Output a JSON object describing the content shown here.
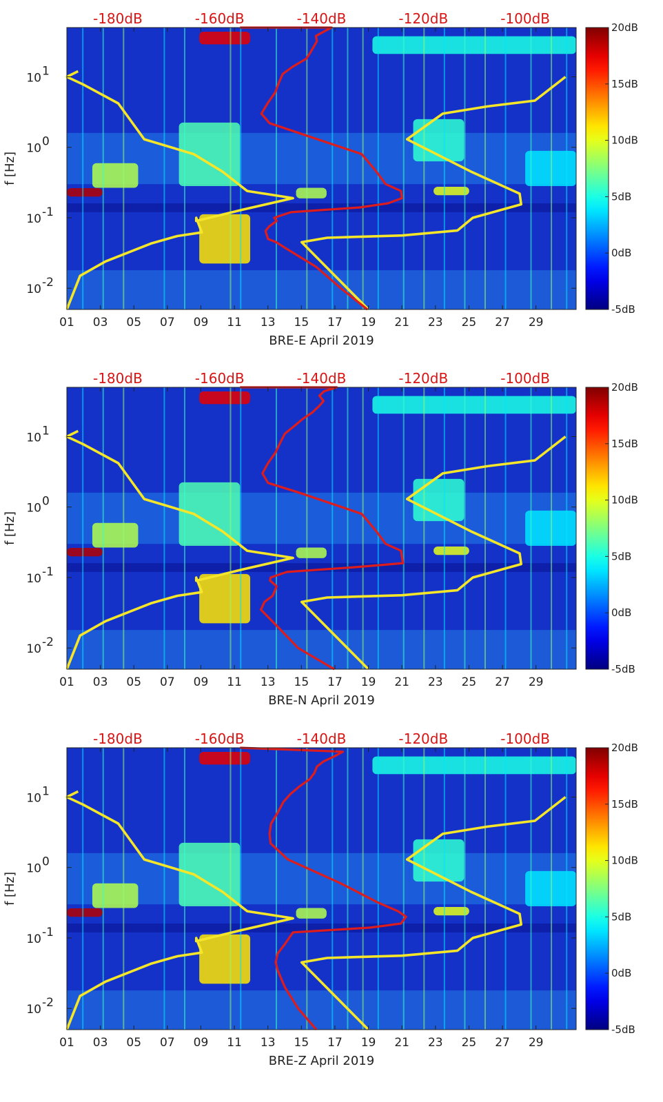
{
  "chart_data": [
    {
      "type": "heatmap",
      "xlabel": "BRE-E April 2019",
      "ylabel": "f [Hz]",
      "x_ticks": [
        "01",
        "03",
        "05",
        "07",
        "09",
        "11",
        "13",
        "15",
        "17",
        "19",
        "21",
        "23",
        "25",
        "27",
        "29"
      ],
      "y_ticks": [
        {
          "value": 0.01,
          "base": "10",
          "exp": "-2"
        },
        {
          "value": 0.1,
          "base": "10",
          "exp": "-1"
        },
        {
          "value": 1,
          "base": "10",
          "exp": "0"
        },
        {
          "value": 10,
          "base": "10",
          "exp": "1"
        }
      ],
      "y_scale": "log",
      "xlim": [
        1,
        31.4
      ],
      "ylim": [
        0.005,
        50
      ],
      "top_axis_labels": [
        "-180dB",
        "-160dB",
        "-140dB",
        "-120dB",
        "-100dB"
      ],
      "top_axis_range_db": [
        -190,
        -90
      ],
      "colorbar": {
        "ticks": [
          "20dB",
          "15dB",
          "10dB",
          "5dB",
          "0dB",
          "-5dB"
        ],
        "range_db": [
          -5,
          20
        ],
        "colormap": "jet"
      },
      "series": [
        {
          "kind": "noise-model-low",
          "color": "#f5e62a",
          "x": [
            -190.0,
            -187.4,
            -182.4,
            -173.5,
            -168.3,
            -163.5,
            -164.6,
            -164.6,
            -155.5,
            -145.6,
            -154.6,
            -159.4,
            -165.1,
            -174.8,
            -179.9,
            -186.8,
            -190.0,
            -187.8
          ],
          "y": [
            0.005,
            0.015,
            0.024,
            0.043,
            0.055,
            0.062,
            0.1,
            0.09,
            0.13,
            0.19,
            0.24,
            0.45,
            0.8,
            1.3,
            4.2,
            7.8,
            10.0,
            12.0
          ]
        },
        {
          "kind": "noise-model-high",
          "color": "#f5e62a",
          "x": [
            -130.8,
            -143.9,
            -138.9,
            -124.2,
            -113.3,
            -110.3,
            -100.8,
            -101.1,
            -110.6,
            -123.2,
            -116.2,
            -107.4,
            -98.1,
            -92.1
          ],
          "y": [
            0.005,
            0.045,
            0.052,
            0.056,
            0.066,
            0.1,
            0.155,
            0.22,
            0.45,
            1.3,
            3.0,
            3.8,
            4.6,
            10.0
          ]
        },
        {
          "kind": "station-median",
          "color": "#dd1d1d",
          "x": [
            -131.0,
            -136.2,
            -141.0,
            -146.5,
            -148.9,
            -150.5,
            -151.0,
            -150.3,
            -148.8,
            -149.3,
            -146.0,
            -132.5,
            -127.0,
            -124.2,
            -124.4,
            -127.4,
            -129.2,
            -132.1,
            -144.5,
            -150.2,
            -151.8,
            -150.6,
            -149.1,
            -148.3,
            -147.6,
            -145.6,
            -143.0,
            -142.2,
            -141.5,
            -140.9,
            -141.1,
            -139.5,
            -138.0,
            -156.0
          ],
          "y": [
            0.005,
            0.01,
            0.02,
            0.035,
            0.045,
            0.05,
            0.065,
            0.075,
            0.09,
            0.1,
            0.12,
            0.14,
            0.16,
            0.19,
            0.24,
            0.3,
            0.45,
            0.8,
            1.6,
            2.2,
            3.0,
            4.2,
            6.0,
            8.5,
            11.0,
            14.0,
            18.0,
            22.0,
            27.0,
            32.0,
            38.0,
            44.0,
            50.0,
            50.0
          ]
        }
      ]
    },
    {
      "type": "heatmap",
      "xlabel": "BRE-N April 2019",
      "ylabel": "f [Hz]",
      "x_ticks": [
        "01",
        "03",
        "05",
        "07",
        "09",
        "11",
        "13",
        "15",
        "17",
        "19",
        "21",
        "23",
        "25",
        "27",
        "29"
      ],
      "y_ticks": [
        {
          "value": 0.01,
          "base": "10",
          "exp": "-2"
        },
        {
          "value": 0.1,
          "base": "10",
          "exp": "-1"
        },
        {
          "value": 1,
          "base": "10",
          "exp": "0"
        },
        {
          "value": 10,
          "base": "10",
          "exp": "1"
        }
      ],
      "y_scale": "log",
      "xlim": [
        1,
        31.4
      ],
      "ylim": [
        0.005,
        50
      ],
      "top_axis_labels": [
        "-180dB",
        "-160dB",
        "-140dB",
        "-120dB",
        "-100dB"
      ],
      "top_axis_range_db": [
        -190,
        -90
      ],
      "colorbar": {
        "ticks": [
          "20dB",
          "15dB",
          "10dB",
          "5dB",
          "0dB",
          "-5dB"
        ],
        "range_db": [
          -5,
          20
        ],
        "colormap": "jet"
      },
      "series": [
        {
          "kind": "noise-model-low",
          "color": "#f5e62a",
          "x": [
            -190.0,
            -187.4,
            -182.4,
            -173.5,
            -168.3,
            -163.5,
            -164.6,
            -164.6,
            -155.5,
            -145.6,
            -154.6,
            -159.4,
            -165.1,
            -174.8,
            -179.9,
            -186.8,
            -190.0,
            -187.8
          ],
          "y": [
            0.005,
            0.015,
            0.024,
            0.043,
            0.055,
            0.062,
            0.1,
            0.09,
            0.13,
            0.19,
            0.24,
            0.45,
            0.8,
            1.3,
            4.2,
            7.8,
            10.0,
            12.0
          ]
        },
        {
          "kind": "noise-model-high",
          "color": "#f5e62a",
          "x": [
            -130.8,
            -143.9,
            -138.9,
            -124.2,
            -113.3,
            -110.3,
            -100.8,
            -101.1,
            -110.6,
            -123.2,
            -116.2,
            -107.4,
            -98.1,
            -92.1
          ],
          "y": [
            0.005,
            0.045,
            0.052,
            0.056,
            0.066,
            0.1,
            0.155,
            0.22,
            0.45,
            1.3,
            3.0,
            3.8,
            4.6,
            10.0
          ]
        },
        {
          "kind": "station-median",
          "color": "#dd1d1d",
          "x": [
            -137.5,
            -144.6,
            -148.6,
            -151.9,
            -151.2,
            -149.6,
            -148.8,
            -150.1,
            -150.0,
            -146.8,
            -133.4,
            -124.0,
            -124.4,
            -127.4,
            -129.2,
            -132.1,
            -144.4,
            -150.5,
            -151.6,
            -150.5,
            -149.0,
            -148.0,
            -147.2,
            -145.4,
            -143.6,
            -141.8,
            -140.5,
            -139.6,
            -140.4,
            -139.5,
            -137.0,
            -156.0
          ],
          "y": [
            0.005,
            0.01,
            0.02,
            0.035,
            0.045,
            0.055,
            0.075,
            0.09,
            0.1,
            0.12,
            0.14,
            0.16,
            0.24,
            0.3,
            0.45,
            0.8,
            1.6,
            2.2,
            3.0,
            4.2,
            6.0,
            8.5,
            11.0,
            14.0,
            18.0,
            22.0,
            27.0,
            32.0,
            38.0,
            44.0,
            50.0,
            50.0
          ]
        }
      ]
    },
    {
      "type": "heatmap",
      "xlabel": "BRE-Z April 2019",
      "ylabel": "f [Hz]",
      "x_ticks": [
        "01",
        "03",
        "05",
        "07",
        "09",
        "11",
        "13",
        "15",
        "17",
        "19",
        "21",
        "23",
        "25",
        "27",
        "29"
      ],
      "y_ticks": [
        {
          "value": 0.01,
          "base": "10",
          "exp": "-2"
        },
        {
          "value": 0.1,
          "base": "10",
          "exp": "-1"
        },
        {
          "value": 1,
          "base": "10",
          "exp": "0"
        },
        {
          "value": 10,
          "base": "10",
          "exp": "1"
        }
      ],
      "y_scale": "log",
      "xlim": [
        1,
        31.4
      ],
      "ylim": [
        0.005,
        50
      ],
      "top_axis_labels": [
        "-180dB",
        "-160dB",
        "-140dB",
        "-120dB",
        "-100dB"
      ],
      "top_axis_range_db": [
        -190,
        -90
      ],
      "colorbar": {
        "ticks": [
          "20dB",
          "15dB",
          "10dB",
          "5dB",
          "0dB",
          "-5dB"
        ],
        "range_db": [
          -5,
          20
        ],
        "colormap": "jet"
      },
      "series": [
        {
          "kind": "noise-model-low",
          "color": "#f5e62a",
          "x": [
            -190.0,
            -187.4,
            -182.4,
            -173.5,
            -168.3,
            -163.5,
            -164.6,
            -164.6,
            -155.5,
            -145.6,
            -154.6,
            -159.4,
            -165.1,
            -174.8,
            -179.9,
            -186.8,
            -190.0,
            -187.8
          ],
          "y": [
            0.005,
            0.015,
            0.024,
            0.043,
            0.055,
            0.062,
            0.1,
            0.09,
            0.13,
            0.19,
            0.24,
            0.45,
            0.8,
            1.3,
            4.2,
            7.8,
            10.0,
            12.0
          ]
        },
        {
          "kind": "noise-model-high",
          "color": "#f5e62a",
          "x": [
            -130.8,
            -143.9,
            -138.9,
            -124.2,
            -113.3,
            -110.3,
            -100.8,
            -101.1,
            -110.6,
            -123.2,
            -116.2,
            -107.4,
            -98.1,
            -92.1
          ],
          "y": [
            0.005,
            0.045,
            0.052,
            0.056,
            0.066,
            0.1,
            0.155,
            0.22,
            0.45,
            1.3,
            3.0,
            3.8,
            4.6,
            10.0
          ]
        },
        {
          "kind": "station-median",
          "color": "#dd1d1d",
          "x": [
            -141.0,
            -144.6,
            -147.2,
            -148.6,
            -149.0,
            -148.6,
            -147.3,
            -145.6,
            -130.5,
            -124.4,
            -123.4,
            -125.0,
            -129.0,
            -136.3,
            -146.6,
            -150.0,
            -150.2,
            -149.9,
            -148.6,
            -147.5,
            -146.1,
            -144.4,
            -142.3,
            -141.4,
            -140.9,
            -139.6,
            -137.4,
            -135.8,
            -156.0
          ],
          "y": [
            0.005,
            0.01,
            0.02,
            0.035,
            0.045,
            0.06,
            0.08,
            0.12,
            0.14,
            0.16,
            0.2,
            0.24,
            0.32,
            0.6,
            1.3,
            2.2,
            3.0,
            4.2,
            6.0,
            8.5,
            11.0,
            14.0,
            18.0,
            22.0,
            27.0,
            32.0,
            38.0,
            44.0,
            50.0
          ]
        }
      ]
    }
  ]
}
